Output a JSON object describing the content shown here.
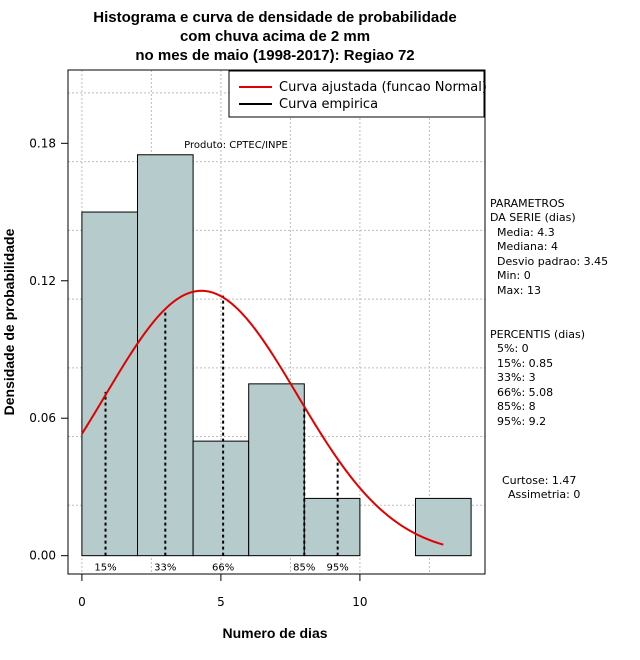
{
  "chart_data": {
    "type": "bar",
    "title_lines": [
      "Histograma e curva de densidade de probabilidade",
      "com chuva acima de 2 mm",
      "no mes de maio (1998-2017): Regiao 72"
    ],
    "xlabel": "Numero de dias",
    "ylabel": "Densidade de probabilidade",
    "xlim": [
      -0.5,
      14.5
    ],
    "ylim": [
      -0.008,
      0.212
    ],
    "x_ticks": [
      0,
      5,
      10
    ],
    "y_ticks": [
      0.0,
      0.06,
      0.12,
      0.18
    ],
    "y_tick_labels": [
      "0.00",
      "0.06",
      "0.12",
      "0.18"
    ],
    "grid": true,
    "bins": [
      {
        "start": 0,
        "end": 2,
        "density": 0.15
      },
      {
        "start": 2,
        "end": 4,
        "density": 0.175
      },
      {
        "start": 4,
        "end": 6,
        "density": 0.05
      },
      {
        "start": 6,
        "end": 8,
        "density": 0.075
      },
      {
        "start": 8,
        "end": 10,
        "density": 0.025
      },
      {
        "start": 10,
        "end": 12,
        "density": 0.0
      },
      {
        "start": 12,
        "end": 14,
        "density": 0.025
      }
    ],
    "bar_color": "#b6cccc",
    "curve": {
      "name": "Curva ajustada (funcao Normal)",
      "distribution": "normal",
      "mean": 4.3,
      "sd": 3.45,
      "x_range": [
        0,
        13
      ],
      "color": "#e00000"
    },
    "empirical": {
      "name": "Curva empirica",
      "color": "#000000"
    },
    "legend_position": "top-right",
    "percentile_markers": [
      {
        "label": "15%",
        "x": 0.85,
        "y": 0.0715
      },
      {
        "label": "33%",
        "x": 3,
        "y": 0.1075
      },
      {
        "label": "66%",
        "x": 5.08,
        "y": 0.1135
      },
      {
        "label": "85%",
        "x": 8,
        "y": 0.0645
      },
      {
        "label": "95%",
        "x": 9.2,
        "y": 0.0415
      }
    ],
    "annotation": "Produto: CPTEC/INPE"
  },
  "side_panel": {
    "params_lines": [
      "PARAMETROS",
      "DA SERIE (dias)",
      "Media: 4.3",
      "Mediana: 4",
      "Desvio padrao: 3.45",
      "Min: 0",
      "Max: 13"
    ],
    "percentis_lines": [
      "PERCENTIS (dias)",
      "5%: 0",
      "15%: 0.85",
      "33%: 3",
      "66%: 5.08",
      "85%: 8",
      "95%: 9.2"
    ],
    "shape_lines": [
      "Curtose: 1.47",
      "Assimetria: 0"
    ]
  }
}
